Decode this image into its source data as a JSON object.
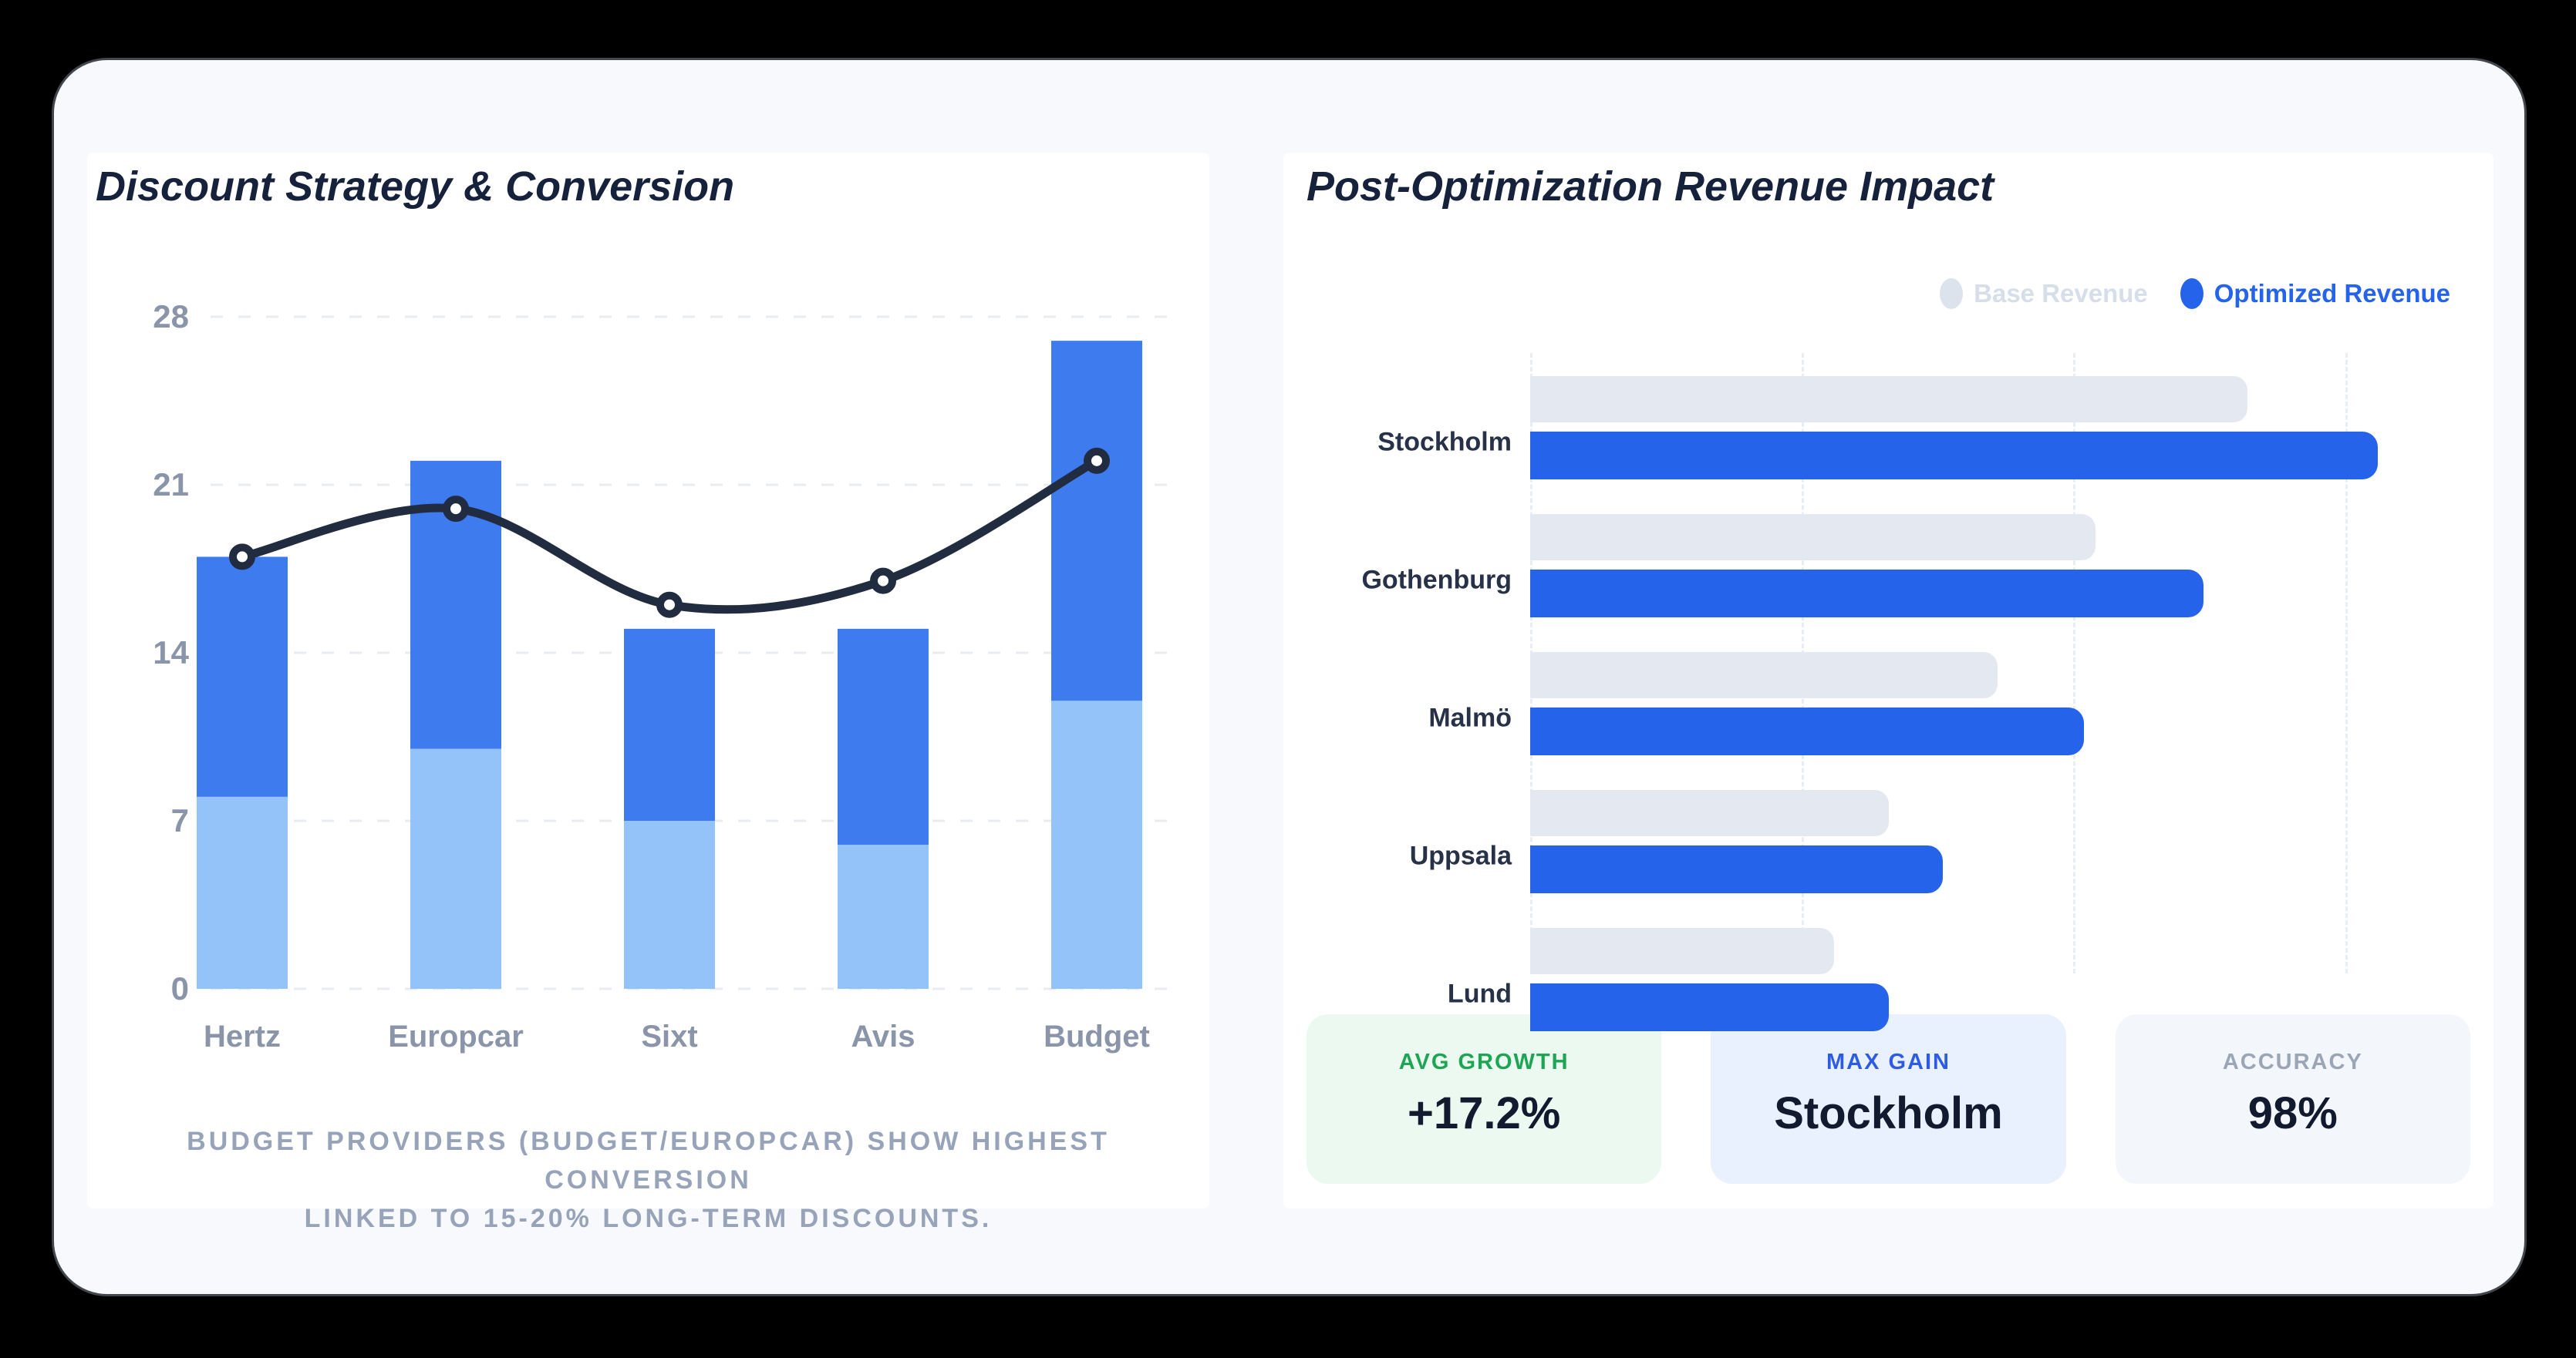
{
  "page": {
    "background": "#000000",
    "panel_bg": "#f7f9fc"
  },
  "chart_data": [
    {
      "id": "discount_conversion",
      "type": "bar",
      "subtype": "stacked-bars-with-line-overlay",
      "title": "Discount Strategy & Conversion",
      "categories": [
        "Hertz",
        "Europcar",
        "Sixt",
        "Avis",
        "Budget"
      ],
      "series": [
        {
          "name": "bar-lower-segment",
          "type": "bar",
          "stack": true,
          "values": [
            8,
            10,
            7,
            6,
            12
          ],
          "color": "#93c3f8"
        },
        {
          "name": "bar-upper-segment",
          "type": "bar",
          "stack": true,
          "values": [
            10,
            12,
            8,
            9,
            15
          ],
          "color": "#3d7bee"
        },
        {
          "name": "conversion-line",
          "type": "line",
          "values": [
            18,
            20,
            16,
            17,
            22
          ],
          "color": "#212c41"
        }
      ],
      "stacked_totals": [
        18,
        22,
        15,
        15,
        27
      ],
      "ylim": [
        0,
        28
      ],
      "yticks": [
        0,
        7,
        14,
        21,
        28
      ],
      "grid": "horizontal-dashed",
      "legend": "none",
      "axis_color": "#8b95a9"
    },
    {
      "id": "revenue_impact",
      "type": "bar",
      "subtype": "horizontal-grouped",
      "title": "Post-Optimization Revenue Impact",
      "categories": [
        "Stockholm",
        "Gothenburg",
        "Malmö",
        "Uppsala",
        "Lund"
      ],
      "series": [
        {
          "name": "Base Revenue",
          "values": [
            66,
            52,
            43,
            33,
            28
          ],
          "color": "#e4e9f1"
        },
        {
          "name": "Optimized Revenue",
          "values": [
            78,
            62,
            51,
            38,
            33
          ],
          "color": "#2563eb"
        }
      ],
      "xlim": [
        0,
        80
      ],
      "gridlines_x": [
        0,
        25,
        50,
        75
      ],
      "grid": "vertical-dashed",
      "legend_position": "top-right",
      "values_scale": "relative units estimated from unlabeled gridlines"
    }
  ],
  "left_panel": {
    "caption_lines": [
      "BUDGET PROVIDERS (BUDGET/EUROPCAR) SHOW HIGHEST CONVERSION",
      "LINKED TO 15-20% LONG-TERM DISCOUNTS."
    ],
    "caption_color": "#97a3b8"
  },
  "right_panel": {
    "legend": [
      {
        "label": "Base Revenue",
        "swatch": "#dde3ec",
        "text_color": "#d6deea"
      },
      {
        "label": "Optimized Revenue",
        "swatch": "#2563eb",
        "text_color": "#2563eb"
      }
    ],
    "stats": [
      {
        "label": "AVG GROWTH",
        "value": "+17.2%",
        "label_color": "#1da554",
        "bg": "#ebf9f1"
      },
      {
        "label": "MAX GAIN",
        "value": "Stockholm",
        "label_color": "#2e5be6",
        "bg": "#e8f1fd"
      },
      {
        "label": "ACCURACY",
        "value": "98%",
        "label_color": "#9aa5b5",
        "bg": "#f3f6fa"
      }
    ]
  },
  "text_colors": {
    "title": "#16213c",
    "axis": "#8b95a9",
    "city_label": "#273148",
    "stat_value": "#111a2e"
  }
}
